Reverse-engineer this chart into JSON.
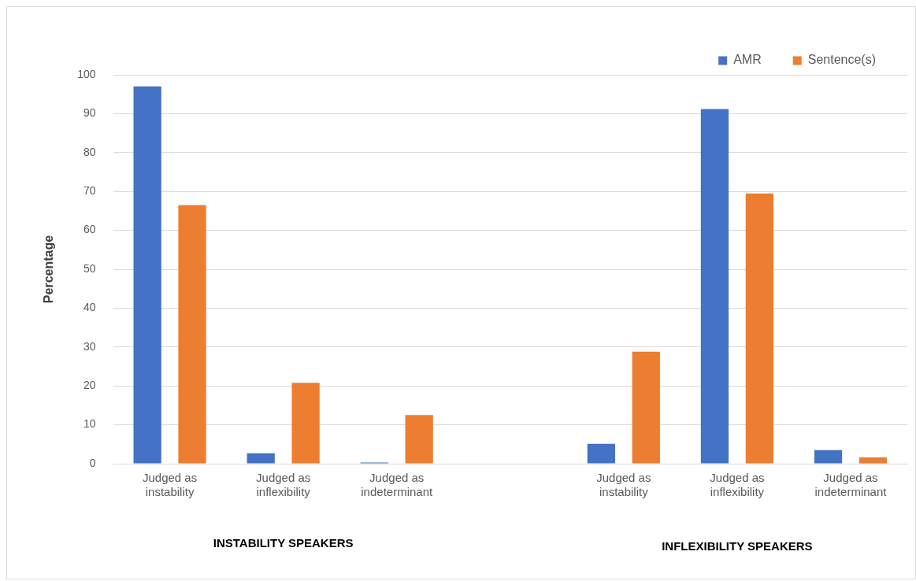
{
  "chart_data": {
    "type": "bar",
    "ylabel": "Percentage",
    "categories": [
      "Judged as instability",
      "Judged as inflexibility",
      "Judged as indeterminant",
      null,
      "Judged as instability",
      "Judged as inflexibility",
      "Judged as indeterminant"
    ],
    "series": [
      {
        "name": "AMR",
        "color": "#4472c4",
        "values": [
          97,
          2.7,
          0.3,
          null,
          5.1,
          91.2,
          3.5
        ]
      },
      {
        "name": "Sentence(s)",
        "color": "#ed7d31",
        "values": [
          66.5,
          20.8,
          12.5,
          null,
          28.8,
          69.5,
          1.6
        ]
      }
    ],
    "ylim": [
      0,
      100
    ],
    "yticks": [
      0,
      10,
      20,
      30,
      40,
      50,
      60,
      70,
      80,
      90,
      100
    ],
    "grid": "y",
    "legend": "top right",
    "annotations": [
      "INSTABILITY SPEAKERS",
      "INFLEXIBILITY SPEAKERS"
    ]
  }
}
